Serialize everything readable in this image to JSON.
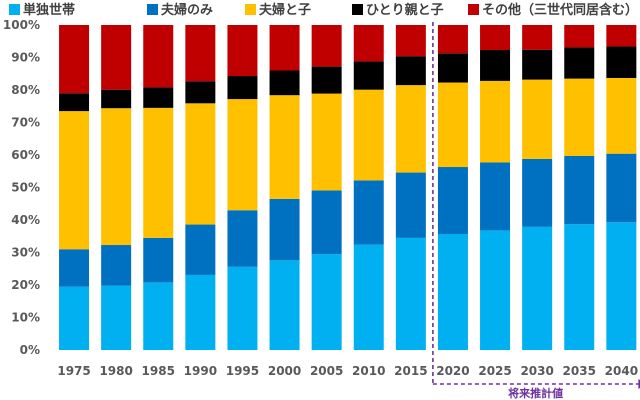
{
  "chart_data": {
    "type": "bar",
    "stacked": true,
    "categories": [
      "1975",
      "1980",
      "1985",
      "1990",
      "1995",
      "2000",
      "2005",
      "2010",
      "2015",
      "2020",
      "2025",
      "2030",
      "2035",
      "2040"
    ],
    "series": [
      {
        "name": "単独世帯",
        "color": "#00B0F0",
        "values": [
          19.5,
          19.8,
          20.8,
          23.1,
          25.6,
          27.6,
          29.5,
          32.4,
          34.5,
          35.7,
          36.8,
          37.9,
          38.7,
          39.3
        ]
      },
      {
        "name": "夫婦のみ",
        "color": "#0070C0",
        "values": [
          11.5,
          12.5,
          13.7,
          15.5,
          17.4,
          18.9,
          19.6,
          19.8,
          20.1,
          20.6,
          20.9,
          20.9,
          21.0,
          21.1
        ]
      },
      {
        "name": "夫婦と子",
        "color": "#FFC000",
        "values": [
          42.5,
          42.1,
          40.0,
          37.3,
          34.2,
          31.9,
          29.8,
          27.9,
          26.9,
          26.0,
          25.1,
          24.4,
          23.8,
          23.3
        ]
      },
      {
        "name": "ひとり親と子",
        "color": "#000000",
        "values": [
          5.5,
          5.7,
          6.3,
          6.8,
          7.1,
          7.6,
          8.3,
          8.7,
          8.9,
          9.0,
          9.5,
          9.2,
          9.6,
          9.7
        ]
      },
      {
        "name": "その他（三世代同居含む）",
        "color": "#C00000",
        "values": [
          21.0,
          19.9,
          19.2,
          17.3,
          15.7,
          14.0,
          12.8,
          11.2,
          9.6,
          8.7,
          7.7,
          7.6,
          6.9,
          6.6
        ]
      }
    ],
    "yticks": [
      "0%",
      "10%",
      "20%",
      "30%",
      "40%",
      "50%",
      "60%",
      "70%",
      "80%",
      "90%",
      "100%"
    ],
    "ylim": [
      0,
      100
    ],
    "legend_position": "top",
    "annotation": {
      "text": "将来推計値",
      "from_category": "2020",
      "to_category": "2040",
      "color": "#7030A0"
    }
  }
}
